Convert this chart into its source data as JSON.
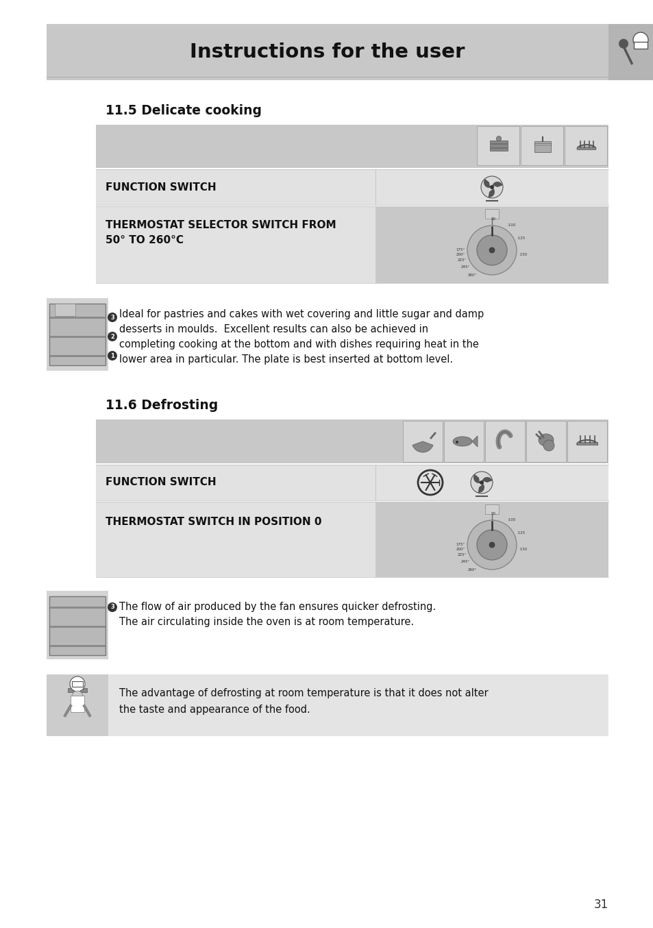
{
  "title": "Instructions for the user",
  "bg_color": "#ffffff",
  "header_bg": "#c8c8c8",
  "light_gray": "#e2e2e2",
  "mid_gray": "#b4b4b4",
  "dark_text": "#111111",
  "section1_title": "11.5 Delicate cooking",
  "section2_title": "11.6 Defrosting",
  "func_switch_label": "FUNCTION SWITCH",
  "thermostat1_label_line1": "THERMOSTAT SELECTOR SWITCH FROM",
  "thermostat1_label_line2": "50° TO 260°C",
  "thermostat2_label": "THERMOSTAT SWITCH IN POSITION 0",
  "text1_lines": [
    "Ideal for pastries and cakes with wet covering and little sugar and damp",
    "desserts in moulds.  Excellent results can also be achieved in",
    "completing cooking at the bottom and with dishes requiring heat in the",
    "lower area in particular. The plate is best inserted at bottom level."
  ],
  "text2_lines": [
    "The flow of air produced by the fan ensures quicker defrosting.",
    "The air circulating inside the oven is at room temperature."
  ],
  "text3_lines": [
    "The advantage of defrosting at room temperature is that it does not alter",
    "the taste and appearance of the food."
  ],
  "page_number": "31",
  "ml": 68,
  "cl": 140,
  "cr": 888,
  "dvx": 548
}
